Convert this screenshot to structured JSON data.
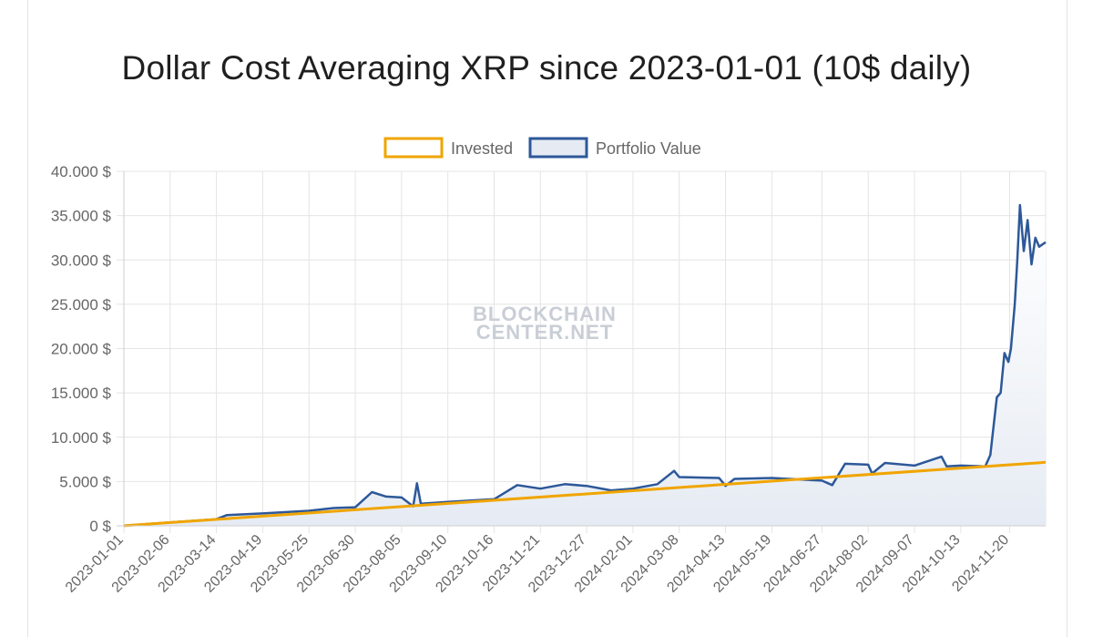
{
  "chart_data": {
    "type": "line",
    "title": "Dollar Cost Averaging XRP since 2023-01-01 (10$ daily)",
    "legend_position": "top",
    "watermark": [
      "BLOCKCHAIN",
      "CENTER.NET"
    ],
    "ylim": [
      0,
      40000
    ],
    "y_ticks": [
      {
        "value": 0,
        "label": "0 $"
      },
      {
        "value": 5000,
        "label": "5.000 $"
      },
      {
        "value": 10000,
        "label": "10.000 $"
      },
      {
        "value": 15000,
        "label": "15.000 $"
      },
      {
        "value": 20000,
        "label": "20.000 $"
      },
      {
        "value": 25000,
        "label": "25.000 $"
      },
      {
        "value": 30000,
        "label": "30.000 $"
      },
      {
        "value": 35000,
        "label": "35.000 $"
      },
      {
        "value": 40000,
        "label": "40.000 $"
      }
    ],
    "x_range": [
      "2023-01-01",
      "2024-12-18"
    ],
    "x_ticks": [
      "2023-01-01",
      "2023-02-06",
      "2023-03-14",
      "2023-04-19",
      "2023-05-25",
      "2023-06-30",
      "2023-08-05",
      "2023-09-10",
      "2023-10-16",
      "2023-11-21",
      "2023-12-27",
      "2024-02-01",
      "2024-03-08",
      "2024-04-13",
      "2024-05-19",
      "2024-06-27",
      "2024-08-02",
      "2024-09-07",
      "2024-10-13",
      "2024-11-20"
    ],
    "grid": true,
    "series": [
      {
        "name": "Invested",
        "color": "#f0a500",
        "points": [
          {
            "x": "2023-01-01",
            "y": 10
          },
          {
            "x": "2024-12-18",
            "y": 7170
          }
        ]
      },
      {
        "name": "Portfolio Value",
        "color": "#2d5899",
        "fill": "#e6ebf3",
        "points": [
          {
            "x": "2023-01-01",
            "y": 10
          },
          {
            "x": "2023-02-06",
            "y": 380
          },
          {
            "x": "2023-03-14",
            "y": 750
          },
          {
            "x": "2023-03-22",
            "y": 1200
          },
          {
            "x": "2023-04-19",
            "y": 1400
          },
          {
            "x": "2023-05-25",
            "y": 1700
          },
          {
            "x": "2023-06-13",
            "y": 2000
          },
          {
            "x": "2023-06-30",
            "y": 2100
          },
          {
            "x": "2023-07-13",
            "y": 3800
          },
          {
            "x": "2023-07-24",
            "y": 3300
          },
          {
            "x": "2023-08-05",
            "y": 3200
          },
          {
            "x": "2023-08-14",
            "y": 2200
          },
          {
            "x": "2023-08-17",
            "y": 4800
          },
          {
            "x": "2023-08-20",
            "y": 2500
          },
          {
            "x": "2023-09-10",
            "y": 2700
          },
          {
            "x": "2023-10-16",
            "y": 3000
          },
          {
            "x": "2023-11-03",
            "y": 4600
          },
          {
            "x": "2023-11-21",
            "y": 4200
          },
          {
            "x": "2023-12-10",
            "y": 4700
          },
          {
            "x": "2023-12-27",
            "y": 4500
          },
          {
            "x": "2024-01-15",
            "y": 4000
          },
          {
            "x": "2024-02-01",
            "y": 4200
          },
          {
            "x": "2024-02-20",
            "y": 4700
          },
          {
            "x": "2024-03-04",
            "y": 6200
          },
          {
            "x": "2024-03-08",
            "y": 5500
          },
          {
            "x": "2024-04-08",
            "y": 5400
          },
          {
            "x": "2024-04-13",
            "y": 4500
          },
          {
            "x": "2024-04-20",
            "y": 5300
          },
          {
            "x": "2024-05-19",
            "y": 5400
          },
          {
            "x": "2024-06-27",
            "y": 5100
          },
          {
            "x": "2024-07-05",
            "y": 4600
          },
          {
            "x": "2024-07-15",
            "y": 7000
          },
          {
            "x": "2024-08-02",
            "y": 6900
          },
          {
            "x": "2024-08-05",
            "y": 5900
          },
          {
            "x": "2024-08-15",
            "y": 7100
          },
          {
            "x": "2024-09-07",
            "y": 6800
          },
          {
            "x": "2024-09-28",
            "y": 7800
          },
          {
            "x": "2024-10-02",
            "y": 6700
          },
          {
            "x": "2024-10-13",
            "y": 6800
          },
          {
            "x": "2024-11-01",
            "y": 6700
          },
          {
            "x": "2024-11-05",
            "y": 8000
          },
          {
            "x": "2024-11-10",
            "y": 14500
          },
          {
            "x": "2024-11-13",
            "y": 15000
          },
          {
            "x": "2024-11-16",
            "y": 19500
          },
          {
            "x": "2024-11-19",
            "y": 18500
          },
          {
            "x": "2024-11-21",
            "y": 20000
          },
          {
            "x": "2024-11-24",
            "y": 25000
          },
          {
            "x": "2024-11-26",
            "y": 30000
          },
          {
            "x": "2024-11-28",
            "y": 36200
          },
          {
            "x": "2024-12-01",
            "y": 31000
          },
          {
            "x": "2024-12-04",
            "y": 34500
          },
          {
            "x": "2024-12-07",
            "y": 29500
          },
          {
            "x": "2024-12-10",
            "y": 32500
          },
          {
            "x": "2024-12-13",
            "y": 31500
          },
          {
            "x": "2024-12-18",
            "y": 32000
          }
        ]
      }
    ]
  }
}
